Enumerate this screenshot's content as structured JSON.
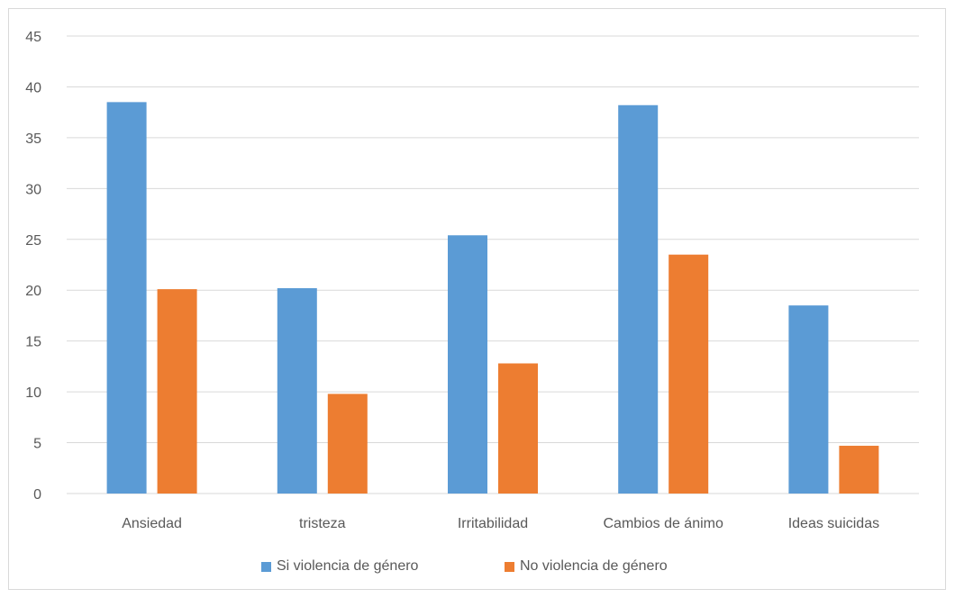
{
  "chart_data": {
    "type": "bar",
    "categories": [
      "Ansiedad",
      "tristeza",
      "Irritabilidad",
      "Cambios de ánimo",
      "Ideas suicidas"
    ],
    "series": [
      {
        "name": "Si violencia de género",
        "color": "#5b9bd5",
        "values": [
          38.5,
          20.2,
          25.4,
          38.2,
          18.5
        ]
      },
      {
        "name": "No violencia de género",
        "color": "#ed7d31",
        "values": [
          20.1,
          9.8,
          12.8,
          23.5,
          4.7
        ]
      }
    ],
    "ylim": [
      0,
      45
    ],
    "yticks": [
      "0",
      "5",
      "10",
      "15",
      "20",
      "25",
      "30",
      "35",
      "40",
      "45"
    ],
    "grid": true,
    "legend_position": "bottom",
    "title": "",
    "xlabel": "",
    "ylabel": ""
  }
}
